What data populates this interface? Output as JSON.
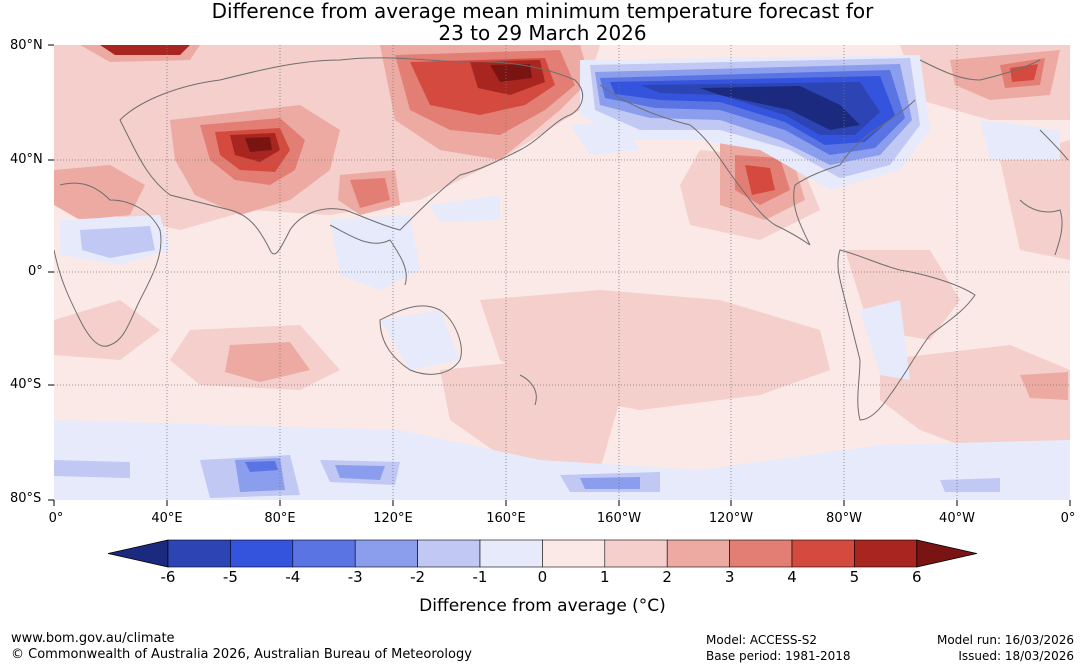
{
  "title": {
    "line1": "Difference from average mean minimum temperature forecast for",
    "line2": "23 to 29 March 2026"
  },
  "map": {
    "lat_labels": [
      "80°N",
      "40°N",
      "0°",
      "40°S",
      "80°S"
    ],
    "lon_labels": [
      "0°",
      "40°E",
      "80°E",
      "120°E",
      "160°E",
      "160°W",
      "120°W",
      "80°W",
      "40°W",
      "0°"
    ]
  },
  "colorbar": {
    "tick_labels": [
      "-6",
      "-5",
      "-4",
      "-3",
      "-2",
      "-1",
      "0",
      "1",
      "2",
      "3",
      "4",
      "5",
      "6"
    ],
    "colors": [
      "#1b2a7e",
      "#2c44b4",
      "#3554de",
      "#5a74e4",
      "#8b9ded",
      "#c0c8f3",
      "#e7eafb",
      "#fbe9e7",
      "#f4cfcb",
      "#ecaaa3",
      "#e37e74",
      "#d44a3f",
      "#a8261f",
      "#7a1412"
    ],
    "axis_title": "Difference from average (°C)"
  },
  "footer": {
    "website": "www.bom.gov.au/climate",
    "copyright": "© Commonwealth of Australia 2026, Australian Bureau of Meteorology",
    "model": "Model: ACCESS-S2",
    "base_period": "Base period: 1981-2018",
    "model_run": "Model run: 16/03/2026",
    "issued": "Issued: 18/03/2026"
  }
}
